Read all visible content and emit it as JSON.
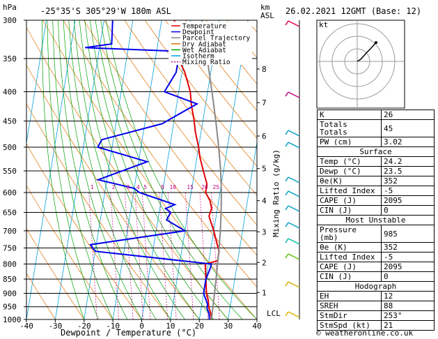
{
  "header": {
    "left_unit": "hPa",
    "location": "-25°35'S 305°29'W 180m ASL",
    "right_unit_km": "km",
    "right_unit_asl": "ASL",
    "datetime": "26.02.2021 12GMT (Base: 12)"
  },
  "footer": {
    "copyright": "© weatheronline.co.uk"
  },
  "legend": [
    {
      "label": "Temperature",
      "color": "#e00000"
    },
    {
      "label": "Dewpoint",
      "color": "#0000ee"
    },
    {
      "label": "Parcel Trajectory",
      "color": "#888888"
    },
    {
      "label": "Dry Adiabat",
      "color": "#e07000"
    },
    {
      "label": "Wet Adiabat",
      "color": "#00a000"
    },
    {
      "label": "Isotherm",
      "color": "#00a0e0"
    },
    {
      "label": "Mixing Ratio",
      "color": "#c00080"
    }
  ],
  "chart_data": {
    "type": "line",
    "xlabel": "Dewpoint / Temperature (°C)",
    "ylabel_right": "Mixing Ratio (g/kg)",
    "xlim": [
      -40,
      40
    ],
    "pressure_levels": [
      300,
      350,
      400,
      450,
      500,
      550,
      600,
      650,
      700,
      750,
      800,
      850,
      900,
      950,
      1000
    ],
    "x_ticks": [
      -40,
      -30,
      -20,
      -10,
      0,
      10,
      20,
      30,
      40
    ],
    "km_ticks": [
      {
        "km": "1",
        "p": 897
      },
      {
        "km": "2",
        "p": 795
      },
      {
        "km": "3",
        "p": 703
      },
      {
        "km": "4",
        "p": 620
      },
      {
        "km": "5",
        "p": 545
      },
      {
        "km": "6",
        "p": 478
      },
      {
        "km": "7",
        "p": 418
      },
      {
        "km": "8",
        "p": 365
      }
    ],
    "lcl_label": "LCL",
    "mixing_ratio_labels": [
      "1",
      "2",
      "3",
      "4",
      "5",
      "8",
      "10",
      "15",
      "20",
      "25"
    ],
    "series": [
      {
        "name": "Temperature",
        "color": "#e00000",
        "points": [
          [
            24.2,
            1000
          ],
          [
            23.6,
            975
          ],
          [
            22.5,
            950
          ],
          [
            22,
            925
          ],
          [
            21,
            900
          ],
          [
            20,
            850
          ],
          [
            19,
            800
          ],
          [
            23,
            790
          ],
          [
            23,
            760
          ],
          [
            22,
            740
          ],
          [
            20,
            700
          ],
          [
            17.5,
            660
          ],
          [
            18,
            640
          ],
          [
            17,
            620
          ],
          [
            15,
            600
          ],
          [
            15,
            580
          ],
          [
            13,
            550
          ],
          [
            11,
            520
          ],
          [
            10,
            500
          ],
          [
            8,
            470
          ],
          [
            7,
            450
          ],
          [
            5,
            420
          ],
          [
            4,
            400
          ],
          [
            1,
            370
          ],
          [
            -2,
            350
          ],
          [
            -4,
            340
          ],
          [
            -3,
            330
          ],
          [
            -5,
            310
          ],
          [
            -5.5,
            300
          ]
        ]
      },
      {
        "name": "Dewpoint",
        "color": "#0000ee",
        "points": [
          [
            23.5,
            1000
          ],
          [
            23,
            975
          ],
          [
            22,
            955
          ],
          [
            22,
            940
          ],
          [
            21,
            920
          ],
          [
            20,
            900
          ],
          [
            20,
            870
          ],
          [
            20,
            850
          ],
          [
            21,
            810
          ],
          [
            21,
            800
          ],
          [
            -20,
            760
          ],
          [
            -22,
            740
          ],
          [
            10,
            700
          ],
          [
            3,
            670
          ],
          [
            4,
            650
          ],
          [
            2,
            640
          ],
          [
            5,
            630
          ],
          [
            -8,
            600
          ],
          [
            -10,
            590
          ],
          [
            -23,
            570
          ],
          [
            -7,
            530
          ],
          [
            -25,
            500
          ],
          [
            -24,
            485
          ],
          [
            -4,
            455
          ],
          [
            7,
            420
          ],
          [
            -5,
            400
          ],
          [
            -2,
            370
          ],
          [
            -2,
            340
          ],
          [
            -35,
            335
          ],
          [
            -26,
            330
          ],
          [
            -27,
            300
          ]
        ]
      },
      {
        "name": "Parcel Trajectory",
        "color": "#888888",
        "points": [
          [
            24.2,
            1000
          ],
          [
            24,
            950
          ],
          [
            23.8,
            900
          ],
          [
            23.5,
            850
          ],
          [
            23.2,
            800
          ],
          [
            22.8,
            750
          ],
          [
            22.3,
            700
          ],
          [
            21.5,
            650
          ],
          [
            20.5,
            600
          ],
          [
            19,
            550
          ],
          [
            17,
            500
          ],
          [
            14.5,
            450
          ],
          [
            11.5,
            400
          ],
          [
            8,
            350
          ],
          [
            4,
            300
          ]
        ]
      }
    ]
  },
  "hodograph": {
    "label": "kt"
  },
  "indices": [
    {
      "label": "K",
      "value": "26"
    },
    {
      "label": "Totals Totals",
      "value": "45"
    },
    {
      "label": "PW (cm)",
      "value": "3.02"
    }
  ],
  "surface": {
    "title": "Surface",
    "rows": [
      {
        "label": "Temp (°C)",
        "value": "24.2"
      },
      {
        "label": "Dewp (°C)",
        "value": "23.5"
      },
      {
        "label": "θe(K)",
        "value": "352"
      },
      {
        "label": "Lifted Index",
        "value": "-5"
      },
      {
        "label": "CAPE (J)",
        "value": "2095"
      },
      {
        "label": "CIN (J)",
        "value": "0"
      }
    ]
  },
  "most_unstable": {
    "title": "Most Unstable",
    "rows": [
      {
        "label": "Pressure (mb)",
        "value": "985"
      },
      {
        "label": "θe (K)",
        "value": "352"
      },
      {
        "label": "Lifted Index",
        "value": "-5"
      },
      {
        "label": "CAPE (J)",
        "value": "2095"
      },
      {
        "label": "CIN (J)",
        "value": "0"
      }
    ]
  },
  "hodograph_table": {
    "title": "Hodograph",
    "rows": [
      {
        "label": "EH",
        "value": "12"
      },
      {
        "label": "SREH",
        "value": "88"
      },
      {
        "label": "StmDir",
        "value": "253°"
      },
      {
        "label": "StmSpd (kt)",
        "value": "21"
      }
    ]
  }
}
